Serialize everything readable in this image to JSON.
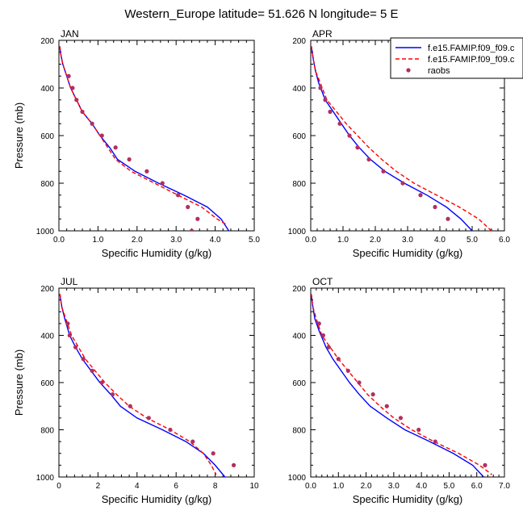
{
  "figure": {
    "title": "Western_Europe  latitude= 51.626 N longitude= 5 E"
  },
  "legend": {
    "entries": [
      {
        "label": "f.e15.FAMIP.f09_f09.c",
        "color": "#0000ff",
        "dash": "solid"
      },
      {
        "label": "f.e15.FAMIP.f09_f09.c",
        "color": "#ff0000",
        "dash": "dashed"
      },
      {
        "label": "raobs",
        "color": "#b03060",
        "marker": "dot"
      }
    ]
  },
  "colors": {
    "model1": "#0000ff",
    "model2": "#ff0000",
    "obs": "#b03060"
  },
  "chart_data": [
    {
      "type": "line",
      "title": "JAN",
      "xlabel": "Specific Humidity (g/kg)",
      "ylabel": "Pressure (mb)",
      "xlim": [
        0,
        5
      ],
      "ylim": [
        1000,
        200
      ],
      "xticks": [
        "0.0",
        "1.0",
        "2.0",
        "3.0",
        "4.0",
        "5.0"
      ],
      "yticks": [
        "200",
        "400",
        "600",
        "800",
        "1000"
      ],
      "series": [
        {
          "style": "solid",
          "points": [
            [
              0.02,
              225
            ],
            [
              0.05,
              260
            ],
            [
              0.1,
              300
            ],
            [
              0.2,
              350
            ],
            [
              0.3,
              400
            ],
            [
              0.45,
              450
            ],
            [
              0.6,
              500
            ],
            [
              0.85,
              550
            ],
            [
              1.05,
              600
            ],
            [
              1.3,
              650
            ],
            [
              1.5,
              700
            ],
            [
              1.95,
              750
            ],
            [
              2.55,
              800
            ],
            [
              3.2,
              850
            ],
            [
              3.8,
              900
            ],
            [
              4.15,
              950
            ],
            [
              4.35,
              1000
            ]
          ]
        },
        {
          "style": "dashed",
          "points": [
            [
              0.02,
              225
            ],
            [
              0.05,
              260
            ],
            [
              0.1,
              300
            ],
            [
              0.2,
              350
            ],
            [
              0.3,
              400
            ],
            [
              0.45,
              450
            ],
            [
              0.6,
              500
            ],
            [
              0.85,
              550
            ],
            [
              1.05,
              600
            ],
            [
              1.25,
              650
            ],
            [
              1.45,
              700
            ],
            [
              1.85,
              750
            ],
            [
              2.45,
              800
            ],
            [
              3.05,
              850
            ],
            [
              3.65,
              900
            ],
            [
              4.05,
              950
            ],
            [
              4.3,
              975
            ]
          ]
        },
        {
          "style": "dots",
          "points": [
            [
              0.25,
              350
            ],
            [
              0.35,
              400
            ],
            [
              0.45,
              450
            ],
            [
              0.6,
              500
            ],
            [
              0.85,
              550
            ],
            [
              1.1,
              600
            ],
            [
              1.45,
              650
            ],
            [
              1.8,
              700
            ],
            [
              2.25,
              750
            ],
            [
              2.65,
              800
            ],
            [
              3.05,
              850
            ],
            [
              3.3,
              900
            ],
            [
              3.55,
              950
            ],
            [
              3.4,
              1000
            ]
          ]
        }
      ]
    },
    {
      "type": "line",
      "title": "APR",
      "xlabel": "Specific Humidity (g/kg)",
      "ylabel": "",
      "xlim": [
        0,
        6
      ],
      "ylim": [
        1000,
        200
      ],
      "xticks": [
        "0.0",
        "1.0",
        "2.0",
        "3.0",
        "4.0",
        "5.0",
        "6.0"
      ],
      "yticks": [
        "200",
        "400",
        "600",
        "800",
        "1000"
      ],
      "series": [
        {
          "style": "solid",
          "points": [
            [
              0.02,
              225
            ],
            [
              0.08,
              280
            ],
            [
              0.15,
              330
            ],
            [
              0.25,
              380
            ],
            [
              0.45,
              450
            ],
            [
              0.7,
              500
            ],
            [
              0.95,
              550
            ],
            [
              1.2,
              600
            ],
            [
              1.5,
              650
            ],
            [
              1.85,
              700
            ],
            [
              2.3,
              750
            ],
            [
              2.9,
              800
            ],
            [
              3.6,
              850
            ],
            [
              4.2,
              900
            ],
            [
              4.65,
              950
            ],
            [
              5.0,
              1000
            ]
          ]
        },
        {
          "style": "dashed",
          "points": [
            [
              0.02,
              225
            ],
            [
              0.08,
              280
            ],
            [
              0.15,
              330
            ],
            [
              0.3,
              380
            ],
            [
              0.5,
              450
            ],
            [
              0.8,
              500
            ],
            [
              1.1,
              550
            ],
            [
              1.45,
              600
            ],
            [
              1.8,
              650
            ],
            [
              2.2,
              700
            ],
            [
              2.65,
              750
            ],
            [
              3.2,
              800
            ],
            [
              3.9,
              850
            ],
            [
              4.6,
              900
            ],
            [
              5.2,
              950
            ],
            [
              5.6,
              1000
            ]
          ]
        },
        {
          "style": "dots",
          "points": [
            [
              0.3,
              400
            ],
            [
              0.45,
              450
            ],
            [
              0.6,
              500
            ],
            [
              0.9,
              550
            ],
            [
              1.2,
              600
            ],
            [
              1.45,
              650
            ],
            [
              1.8,
              700
            ],
            [
              2.25,
              750
            ],
            [
              2.85,
              800
            ],
            [
              3.4,
              850
            ],
            [
              3.85,
              900
            ],
            [
              4.25,
              950
            ]
          ]
        }
      ]
    },
    {
      "type": "line",
      "title": "JUL",
      "xlabel": "Specific Humidity (g/kg)",
      "ylabel": "Pressure (mb)",
      "xlim": [
        0,
        10
      ],
      "ylim": [
        1000,
        200
      ],
      "xticks": [
        "0",
        "2",
        "4",
        "6",
        "8",
        "10"
      ],
      "yticks": [
        "200",
        "400",
        "600",
        "800",
        "1000"
      ],
      "series": [
        {
          "style": "solid",
          "points": [
            [
              0.05,
              225
            ],
            [
              0.15,
              280
            ],
            [
              0.3,
              330
            ],
            [
              0.55,
              400
            ],
            [
              0.85,
              450
            ],
            [
              1.2,
              500
            ],
            [
              1.65,
              550
            ],
            [
              2.1,
              600
            ],
            [
              2.65,
              650
            ],
            [
              3.15,
              700
            ],
            [
              4.0,
              750
            ],
            [
              5.3,
              800
            ],
            [
              6.5,
              850
            ],
            [
              7.4,
              900
            ],
            [
              8.0,
              950
            ],
            [
              8.5,
              1000
            ]
          ]
        },
        {
          "style": "dashed",
          "points": [
            [
              0.05,
              225
            ],
            [
              0.15,
              280
            ],
            [
              0.35,
              330
            ],
            [
              0.65,
              400
            ],
            [
              1.0,
              450
            ],
            [
              1.35,
              500
            ],
            [
              1.85,
              550
            ],
            [
              2.35,
              600
            ],
            [
              2.95,
              650
            ],
            [
              3.6,
              700
            ],
            [
              4.5,
              750
            ],
            [
              5.7,
              800
            ],
            [
              6.7,
              850
            ],
            [
              7.4,
              900
            ],
            [
              7.8,
              950
            ],
            [
              8.05,
              990
            ]
          ]
        },
        {
          "style": "dots",
          "points": [
            [
              0.45,
              350
            ],
            [
              0.55,
              400
            ],
            [
              0.85,
              450
            ],
            [
              1.25,
              500
            ],
            [
              1.7,
              550
            ],
            [
              2.2,
              600
            ],
            [
              2.75,
              650
            ],
            [
              3.65,
              700
            ],
            [
              4.6,
              750
            ],
            [
              5.7,
              800
            ],
            [
              6.85,
              850
            ],
            [
              7.9,
              900
            ],
            [
              8.95,
              950
            ]
          ]
        }
      ]
    },
    {
      "type": "line",
      "title": "OCT",
      "xlabel": "Specific Humidity (g/kg)",
      "ylabel": "",
      "xlim": [
        0,
        7
      ],
      "ylim": [
        1000,
        200
      ],
      "xticks": [
        "0.0",
        "1.0",
        "2.0",
        "3.0",
        "4.0",
        "5.0",
        "6.0",
        "7.0"
      ],
      "yticks": [
        "200",
        "400",
        "600",
        "800",
        "1000"
      ],
      "series": [
        {
          "style": "solid",
          "points": [
            [
              0.02,
              225
            ],
            [
              0.08,
              280
            ],
            [
              0.15,
              330
            ],
            [
              0.3,
              380
            ],
            [
              0.55,
              450
            ],
            [
              0.8,
              500
            ],
            [
              1.1,
              550
            ],
            [
              1.4,
              600
            ],
            [
              1.75,
              650
            ],
            [
              2.15,
              700
            ],
            [
              2.75,
              750
            ],
            [
              3.4,
              800
            ],
            [
              4.3,
              850
            ],
            [
              5.15,
              900
            ],
            [
              5.85,
              950
            ],
            [
              6.25,
              1000
            ]
          ]
        },
        {
          "style": "dashed",
          "points": [
            [
              0.02,
              225
            ],
            [
              0.08,
              280
            ],
            [
              0.2,
              330
            ],
            [
              0.4,
              400
            ],
            [
              0.7,
              450
            ],
            [
              1.0,
              500
            ],
            [
              1.35,
              550
            ],
            [
              1.7,
              600
            ],
            [
              2.05,
              650
            ],
            [
              2.5,
              700
            ],
            [
              3.0,
              750
            ],
            [
              3.65,
              800
            ],
            [
              4.45,
              850
            ],
            [
              5.35,
              900
            ],
            [
              6.1,
              950
            ],
            [
              6.55,
              990
            ]
          ]
        },
        {
          "style": "dots",
          "points": [
            [
              0.3,
              350
            ],
            [
              0.45,
              400
            ],
            [
              0.65,
              450
            ],
            [
              1.0,
              500
            ],
            [
              1.35,
              550
            ],
            [
              1.75,
              600
            ],
            [
              2.25,
              650
            ],
            [
              2.75,
              700
            ],
            [
              3.25,
              750
            ],
            [
              3.9,
              800
            ],
            [
              4.5,
              850
            ],
            [
              6.3,
              950
            ]
          ]
        }
      ]
    }
  ]
}
